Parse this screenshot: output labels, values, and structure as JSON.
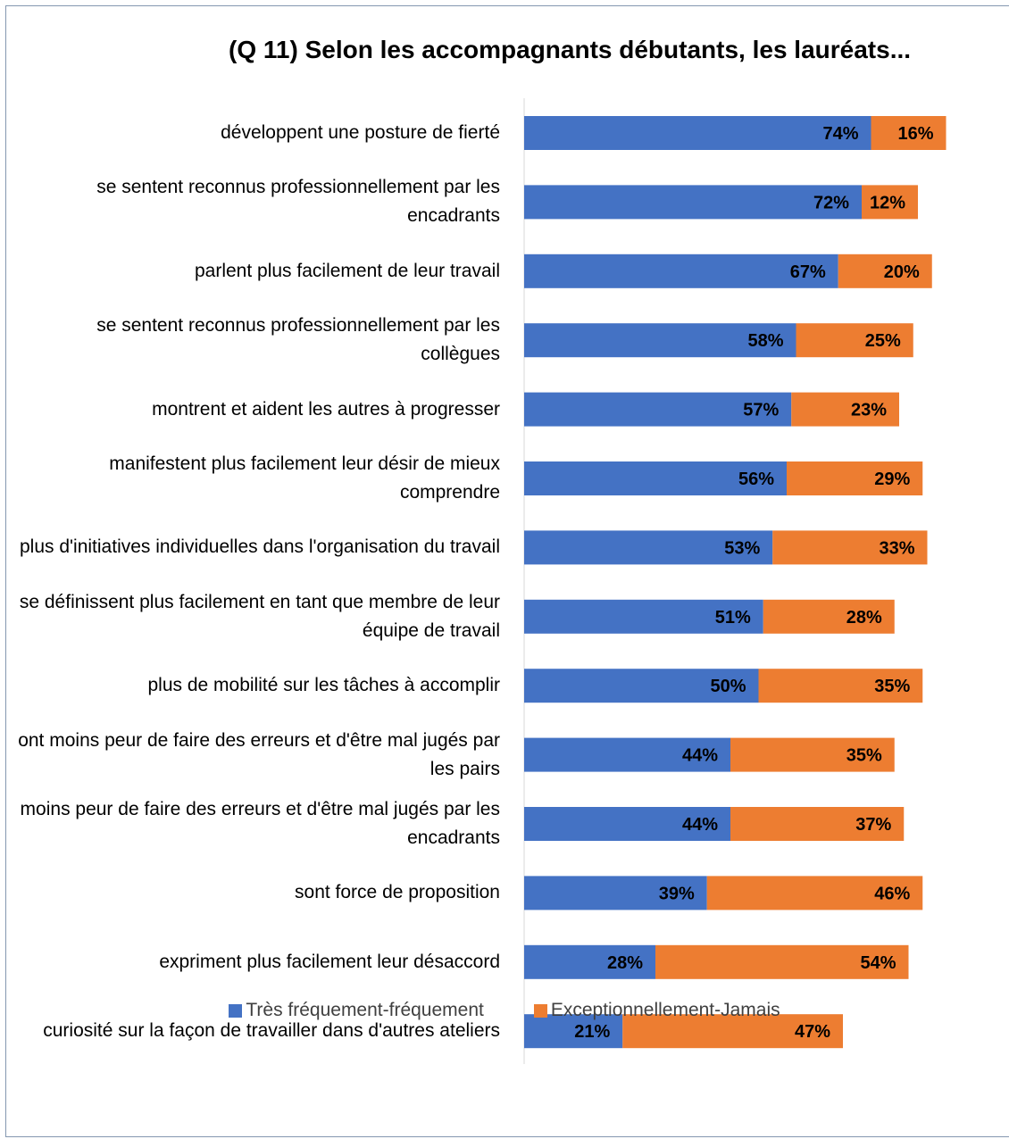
{
  "chart_data": {
    "type": "bar",
    "orientation": "horizontal",
    "stacked": true,
    "title": "(Q 11) Selon les accompagnants débutants, les lauréats...",
    "categories": [
      "développent une posture de fierté",
      "se sentent reconnus professionnellement par les encadrants",
      "parlent plus facilement de leur travail",
      "se sentent reconnus professionnellement par les collègues",
      "montrent et aident les autres à progresser",
      "manifestent plus facilement leur désir de mieux comprendre",
      "plus d'initiatives individuelles dans l'organisation du travail",
      "se définissent plus facilement en tant que membre de leur équipe de travail",
      "plus de mobilité sur les tâches à accomplir",
      "ont moins peur de faire des erreurs et d'être mal jugés par les pairs",
      "moins peur de faire des erreurs et d'être mal jugés par les encadrants",
      "sont force de proposition",
      "expriment plus facilement leur désaccord",
      "curiosité sur la façon de travailler dans d'autres ateliers"
    ],
    "series": [
      {
        "name": "Très fréquement-fréquement",
        "color": "#4472c4",
        "values": [
          74,
          72,
          67,
          58,
          57,
          56,
          53,
          51,
          50,
          44,
          44,
          39,
          28,
          21
        ]
      },
      {
        "name": "Exceptionnellement-Jamais",
        "color": "#ed7d31",
        "values": [
          16,
          12,
          20,
          25,
          23,
          29,
          33,
          28,
          35,
          35,
          37,
          46,
          54,
          47
        ]
      }
    ],
    "value_suffix": "%",
    "xlim": [
      0,
      100
    ],
    "legend_position": "bottom",
    "grid": false
  }
}
